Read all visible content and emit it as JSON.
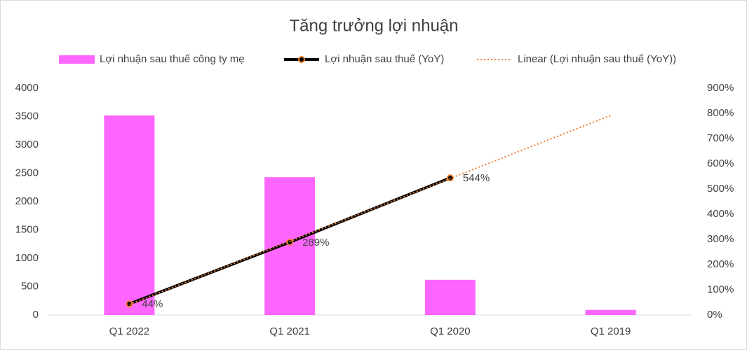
{
  "chart_data": {
    "type": "combo",
    "title": "Tăng trưởng lợi nhuận",
    "categories": [
      "Q1 2022",
      "Q1 2021",
      "Q1 2020",
      "Q1 2019"
    ],
    "series": [
      {
        "name": "Lợi nhuận sau thuế công ty mẹ",
        "type": "bar",
        "color": "#ff66ff",
        "values": [
          3520,
          2430,
          620,
          90
        ]
      },
      {
        "name": "Lợi nhuận sau thuế (YoY)",
        "type": "line",
        "axis": "y2",
        "color": "#000000",
        "marker_color": "#ed7d31",
        "values": [
          44,
          289,
          544,
          null
        ],
        "value_labels": [
          "44%",
          "289%",
          "544%",
          null
        ]
      },
      {
        "name": "Linear (Lợi nhuận sau thuế (YoY))",
        "type": "trendline",
        "axis": "y2",
        "color": "#ed7d31",
        "values": [
          42,
          292,
          542,
          792
        ]
      }
    ],
    "ylim": [
      0,
      4000
    ],
    "yticks": [
      0,
      500,
      1000,
      1500,
      2000,
      2500,
      3000,
      3500,
      4000
    ],
    "y2lim": [
      0,
      900
    ],
    "y2ticks": [
      {
        "value": 0,
        "label": "0%"
      },
      {
        "value": 100,
        "label": "100%"
      },
      {
        "value": 200,
        "label": "200%"
      },
      {
        "value": 300,
        "label": "300%"
      },
      {
        "value": 400,
        "label": "400%"
      },
      {
        "value": 500,
        "label": "500%"
      },
      {
        "value": 600,
        "label": "600%"
      },
      {
        "value": 700,
        "label": "700%"
      },
      {
        "value": 800,
        "label": "800%"
      },
      {
        "value": 900,
        "label": "900%"
      }
    ],
    "grid": false,
    "legend": "top"
  }
}
